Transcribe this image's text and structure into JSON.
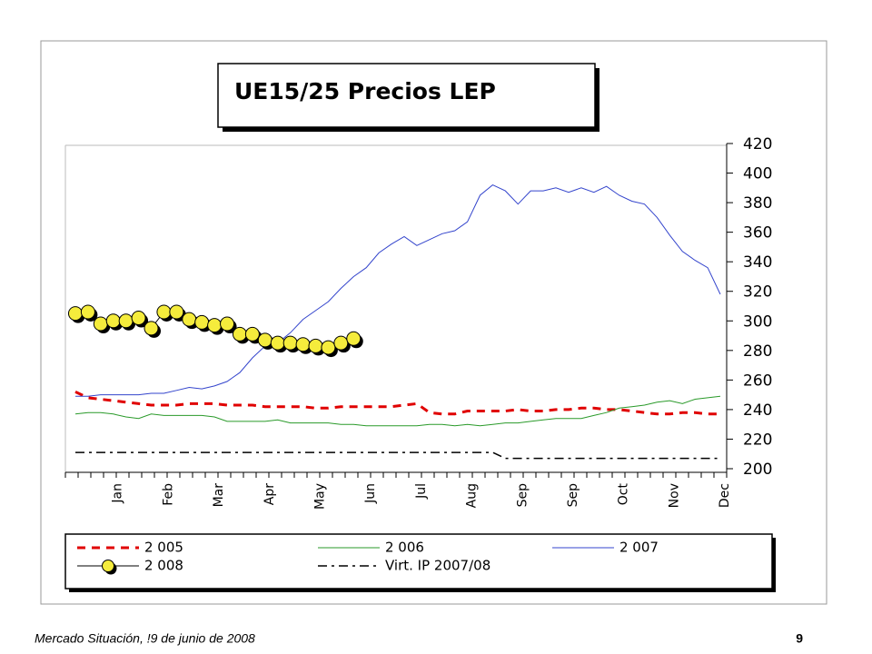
{
  "chart_data": {
    "type": "line",
    "title": "UE15/25  Precios LEP",
    "footer": "Mercado Situación, !9 de junio de 2008",
    "page_number": "9",
    "categories": [
      null,
      null,
      null,
      "Jan",
      null,
      null,
      null,
      "Feb",
      null,
      null,
      null,
      "Mar",
      null,
      null,
      null,
      "Apr",
      null,
      null,
      null,
      "May",
      null,
      null,
      null,
      "Jun",
      null,
      null,
      null,
      "Jul",
      null,
      null,
      null,
      "Aug",
      null,
      null,
      null,
      "Sep",
      null,
      null,
      null,
      "Sep",
      null,
      null,
      null,
      "Oct",
      null,
      null,
      null,
      "Nov",
      null,
      null,
      null,
      "Dec"
    ],
    "ylim": [
      200,
      420
    ],
    "yticks": [
      200,
      220,
      240,
      260,
      280,
      300,
      320,
      340,
      360,
      380,
      400,
      420
    ],
    "y_axis_side": "right",
    "grid": false,
    "series": [
      {
        "name": "2 005",
        "color": "#e00000",
        "dash": "dash",
        "values": [
          252,
          248,
          247,
          246,
          245,
          244,
          243,
          243,
          243,
          244,
          244,
          244,
          243,
          243,
          243,
          242,
          242,
          242,
          242,
          241,
          241,
          242,
          242,
          242,
          242,
          242,
          243,
          244,
          238,
          237,
          237,
          239,
          239,
          239,
          239,
          240,
          239,
          239,
          240,
          240,
          241,
          241,
          240,
          240,
          239,
          238,
          237,
          237,
          238,
          238,
          237,
          237
        ]
      },
      {
        "name": "2 006",
        "color": "#2a9a2a",
        "dash": "solid",
        "values": [
          237,
          238,
          238,
          237,
          235,
          234,
          237,
          236,
          236,
          236,
          236,
          235,
          232,
          232,
          232,
          232,
          233,
          231,
          231,
          231,
          231,
          230,
          230,
          229,
          229,
          229,
          229,
          229,
          230,
          230,
          229,
          230,
          229,
          230,
          231,
          231,
          232,
          233,
          234,
          234,
          234,
          236,
          238,
          241,
          242,
          243,
          245,
          246,
          244,
          247,
          248,
          249
        ]
      },
      {
        "name": "2 007",
        "color": "#3344cc",
        "dash": "solid",
        "values": [
          249,
          249,
          250,
          250,
          250,
          250,
          251,
          251,
          253,
          255,
          254,
          256,
          259,
          265,
          275,
          283,
          285,
          292,
          301,
          307,
          313,
          322,
          330,
          336,
          346,
          352,
          357,
          351,
          355,
          359,
          361,
          367,
          385,
          392,
          388,
          379,
          388,
          388,
          390,
          387,
          390,
          387,
          391,
          385,
          381,
          379,
          370,
          358,
          347,
          341,
          336,
          318
        ]
      },
      {
        "name": "2 008",
        "color": "#f5ec3c",
        "dash": "solid",
        "marker": "circle",
        "values": [
          305,
          306,
          298,
          300,
          300,
          302,
          295,
          306,
          306,
          301,
          299,
          297,
          298,
          291,
          291,
          287,
          285,
          285,
          284,
          283,
          282,
          285,
          288,
          null,
          null,
          null,
          null,
          null,
          null,
          null,
          null,
          null,
          null,
          null,
          null,
          null,
          null,
          null,
          null,
          null,
          null,
          null,
          null,
          null,
          null,
          null,
          null,
          null,
          null,
          null,
          null,
          null
        ]
      },
      {
        "name": "Virt. IP 2007/08",
        "color": "#000000",
        "dash": "dashdot",
        "values": [
          211,
          211,
          211,
          211,
          211,
          211,
          211,
          211,
          211,
          211,
          211,
          211,
          211,
          211,
          211,
          211,
          211,
          211,
          211,
          211,
          211,
          211,
          211,
          211,
          211,
          211,
          211,
          211,
          211,
          211,
          211,
          211,
          211,
          211,
          207,
          207,
          207,
          207,
          207,
          207,
          207,
          207,
          207,
          207,
          207,
          207,
          207,
          207,
          207,
          207,
          207,
          207
        ]
      }
    ]
  }
}
